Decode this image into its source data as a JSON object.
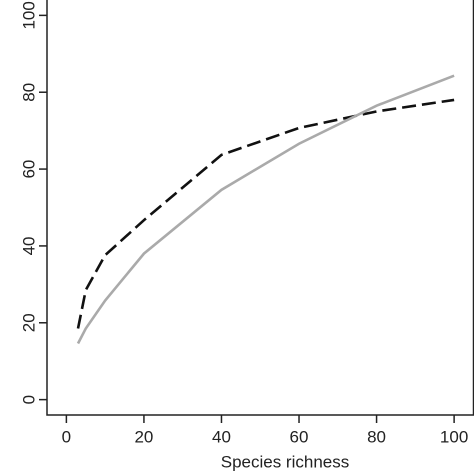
{
  "chart_data": {
    "type": "line",
    "x_label": "Species richness",
    "x": [
      3,
      5,
      10,
      20,
      40,
      60,
      80,
      100
    ],
    "series": [
      {
        "color": "#111111",
        "dash": true,
        "values": [
          18.5,
          28.5,
          37.6,
          46.7,
          63.7,
          70.7,
          75,
          78
        ]
      },
      {
        "color": "#aaaaaa",
        "dash": false,
        "values": [
          14.6,
          18.5,
          25.8,
          38,
          54.6,
          66.6,
          76.5,
          84.3
        ]
      }
    ],
    "xlim": [
      -5,
      105
    ],
    "ylim": [
      -4,
      104
    ],
    "xticks": [
      0,
      20,
      40,
      60,
      80,
      100
    ],
    "yticks": [
      0,
      20,
      40,
      60,
      80,
      100
    ]
  }
}
